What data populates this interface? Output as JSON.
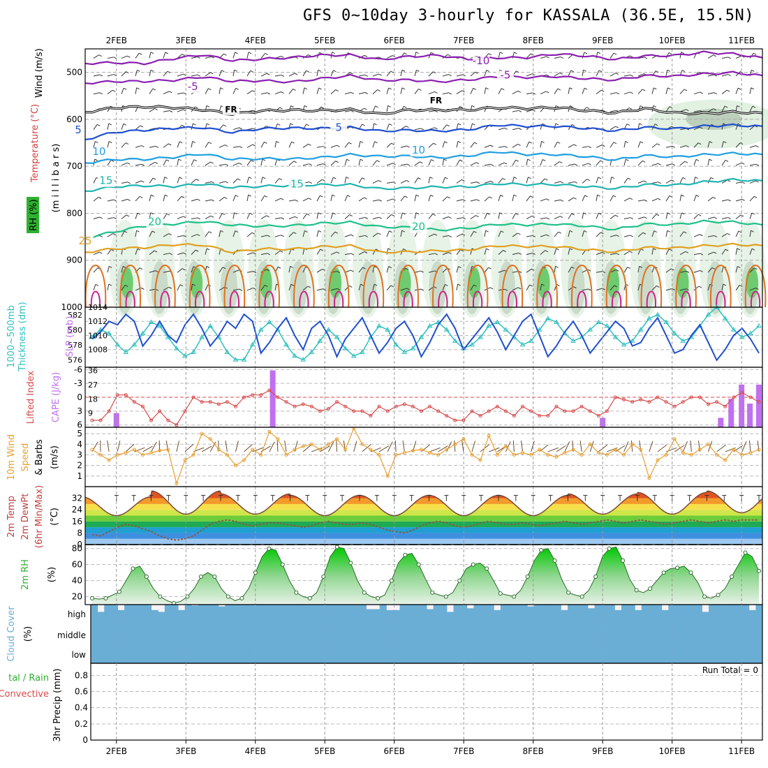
{
  "title": "GFS 0~10day 3-hourly for KASSALA (36.5E, 15.5N)",
  "colors": {
    "purple": "#8a1fb0",
    "black": "#000000",
    "blue": "#1f4fd0",
    "lightblue": "#1f9fe0",
    "teal": "#1fb4b0",
    "green": "#1fc08a",
    "orange": "#e0a020",
    "darkorange": "#e07020",
    "magenta": "#d01f8a",
    "cyan": "#2fbfbf",
    "red": "#d84a4a",
    "cape": "#c070f0",
    "wind10": "#e8a030",
    "cloud": "#6aaed6",
    "rh": "#2fb030"
  },
  "chart_data": [
    {
      "type": "line",
      "name": "upper-air-section",
      "x_labels": [
        "2FEB",
        "3FEB",
        "4FEB",
        "5FEB",
        "6FEB",
        "7FEB",
        "8FEB",
        "9FEB",
        "10FEB",
        "11FEB"
      ],
      "ylabel_parts": [
        "Wind (m/s)",
        "Temperature (°C)",
        "RH (%)",
        "(m i l l i b a r s)"
      ],
      "y_ticks": [
        500,
        600,
        700,
        800,
        900,
        1000
      ],
      "ylim": [
        450,
        1000
      ],
      "contour_labels": [
        {
          "text": "-10",
          "x_day": 7.25,
          "p": 483,
          "color": "purple"
        },
        {
          "text": "-5",
          "x_day": 7.6,
          "p": 513,
          "color": "purple"
        },
        {
          "text": "-5",
          "x_day": 3.1,
          "p": 538,
          "color": "purple"
        },
        {
          "text": "FR",
          "x_day": 3.65,
          "p": 585,
          "color": "black"
        },
        {
          "text": "FR",
          "x_day": 6.6,
          "p": 566,
          "color": "black"
        },
        {
          "text": "5",
          "x_day": 1.45,
          "p": 630,
          "color": "blue"
        },
        {
          "text": "5",
          "x_day": 5.2,
          "p": 625,
          "color": "blue"
        },
        {
          "text": "10",
          "x_day": 1.75,
          "p": 676,
          "color": "lightblue"
        },
        {
          "text": "10",
          "x_day": 6.35,
          "p": 673,
          "color": "lightblue"
        },
        {
          "text": "15",
          "x_day": 1.85,
          "p": 738,
          "color": "teal"
        },
        {
          "text": "15",
          "x_day": 4.6,
          "p": 745,
          "color": "teal"
        },
        {
          "text": "20",
          "x_day": 2.55,
          "p": 825,
          "color": "green"
        },
        {
          "text": "20",
          "x_day": 6.35,
          "p": 836,
          "color": "green"
        },
        {
          "text": "25",
          "x_day": 1.55,
          "p": 866,
          "color": "orange"
        }
      ],
      "isotherms": [
        {
          "color": "purple",
          "values": [
            478,
            482,
            480,
            470,
            465,
            472,
            474,
            468,
            462,
            466,
            470,
            468,
            464,
            470,
            472,
            466,
            462,
            466,
            470,
            468,
            462,
            458,
            462,
            466
          ]
        },
        {
          "color": "purple",
          "values": [
            520,
            522,
            518,
            516,
            512,
            516,
            520,
            520,
            512,
            510,
            514,
            518,
            520,
            514,
            512,
            508,
            510,
            514,
            514,
            510,
            506,
            504,
            502,
            504
          ]
        },
        {
          "color": "black",
          "values": [
            582,
            578,
            572,
            574,
            582,
            586,
            584,
            580,
            580,
            582,
            586,
            582,
            580,
            578,
            578,
            574,
            576,
            582,
            584,
            580,
            584,
            588,
            586,
            584
          ]
        },
        {
          "color": "blue",
          "values": [
            640,
            630,
            622,
            618,
            620,
            625,
            622,
            618,
            618,
            620,
            622,
            625,
            625,
            620,
            615,
            612,
            616,
            620,
            622,
            620,
            618,
            615,
            614,
            612
          ]
        },
        {
          "color": "lightblue",
          "values": [
            690,
            688,
            684,
            680,
            676,
            682,
            686,
            684,
            680,
            678,
            676,
            680,
            682,
            676,
            672,
            672,
            676,
            680,
            684,
            680,
            678,
            676,
            674,
            672
          ]
        },
        {
          "color": "teal",
          "values": [
            750,
            746,
            740,
            742,
            740,
            742,
            745,
            740,
            738,
            742,
            745,
            748,
            744,
            742,
            740,
            736,
            740,
            744,
            745,
            742,
            738,
            734,
            730,
            728
          ]
        },
        {
          "color": "green",
          "values": [
            850,
            842,
            826,
            822,
            820,
            822,
            830,
            826,
            820,
            822,
            826,
            832,
            836,
            830,
            826,
            822,
            824,
            828,
            832,
            826,
            822,
            818,
            820,
            822
          ]
        },
        {
          "color": "orange",
          "values": [
            880,
            878,
            872,
            866,
            870,
            880,
            878,
            876,
            870,
            872,
            880,
            884,
            880,
            876,
            872,
            868,
            872,
            878,
            880,
            876,
            872,
            870,
            868,
            866
          ]
        }
      ]
    },
    {
      "type": "line",
      "name": "slp-thickness",
      "ylabel_left": "1000~500mb Thickness (dm)",
      "ylabel_right": "SLP (mb)",
      "left_ticks": [
        576,
        578,
        580,
        582
      ],
      "right_ticks": [
        1008,
        1010,
        1012,
        1014
      ],
      "left_lim": [
        575,
        583
      ],
      "right_lim": [
        1005.5,
        1014
      ],
      "slp": [
        1009.5,
        1010.5,
        1012,
        1011.5,
        1013,
        1012,
        1008.5,
        1010,
        1012,
        1010,
        1009,
        1011.5,
        1013,
        1011,
        1008.5,
        1010,
        1012,
        1011,
        1013,
        1012,
        1007.5,
        1009,
        1011,
        1012.5,
        1010,
        1008,
        1011,
        1012,
        1010,
        1007,
        1009.5,
        1011,
        1012.5,
        1010,
        1007.5,
        1009,
        1011,
        1012,
        1010,
        1007,
        1009,
        1011.5,
        1013,
        1011,
        1008,
        1009.5,
        1011,
        1012.5,
        1010.5,
        1008,
        1010,
        1012,
        1013,
        1010,
        1007,
        1008.5,
        1010.5,
        1012,
        1010,
        1007.5,
        1009,
        1010.5,
        1012,
        1011,
        1008.5,
        1009,
        1011,
        1012.5,
        1010,
        1007.5,
        1008,
        1010,
        1011.5,
        1009,
        1006.5,
        1008,
        1010,
        1011,
        1009.5,
        1007.5
      ],
      "thickness": [
        579,
        580,
        579.5,
        578,
        577,
        578,
        579.5,
        581,
        580.5,
        579,
        577.5,
        576.5,
        577,
        579,
        580.5,
        579,
        577,
        576,
        576,
        578,
        580,
        581,
        580,
        578,
        576.5,
        576,
        577,
        578.5,
        580,
        579,
        577.5,
        576.5,
        577,
        579,
        580.5,
        580,
        578,
        577,
        577.5,
        579,
        580.5,
        581,
        580,
        578.5,
        577.5,
        578,
        579,
        580.5,
        581,
        580,
        579,
        578,
        578.5,
        580,
        581.5,
        581,
        579.5,
        578.5,
        579,
        580,
        581,
        580.5,
        579,
        578,
        578.5,
        580,
        581.5,
        582,
        581,
        579.5,
        578.5,
        579,
        580.5,
        582,
        583,
        581.5,
        580,
        579,
        579.5,
        580.5
      ]
    },
    {
      "type": "bar",
      "name": "lifted-index-cape",
      "ylabel_left": "Lifted Index",
      "ylabel_right": "CAPE (J/kg)",
      "left_ticks": [
        "-6",
        "-3",
        "0",
        "3",
        "6"
      ],
      "right_ticks": [
        "9",
        "18",
        "27",
        "36"
      ],
      "lifted_index": [
        5,
        5,
        3,
        -0.5,
        -0.5,
        1,
        2,
        5,
        3,
        5,
        6,
        3,
        0,
        1,
        1,
        1.5,
        1,
        2,
        0,
        -0.5,
        -0.5,
        -1.5,
        0,
        1,
        2,
        1.5,
        2,
        3,
        2.5,
        1,
        2,
        3,
        3,
        4,
        2,
        3,
        2,
        1.5,
        2,
        3,
        2,
        3,
        4,
        5,
        5,
        3,
        4,
        3,
        2,
        3,
        4,
        2,
        3,
        4,
        4,
        2,
        3,
        3,
        2,
        3,
        4,
        3,
        0,
        0.5,
        1,
        0.5,
        1,
        0,
        1,
        2,
        1,
        0,
        0,
        1.5,
        1,
        2,
        0,
        -1,
        0,
        1
      ],
      "cape": [
        {
          "x_day": 2.0,
          "v": 9
        },
        {
          "x_day": 4.25,
          "v": 36
        },
        {
          "x_day": 9.0,
          "v": 6
        },
        {
          "x_day": 10.7,
          "v": 6
        },
        {
          "x_day": 10.85,
          "v": 18
        },
        {
          "x_day": 11.0,
          "v": 27
        },
        {
          "x_day": 11.12,
          "v": 15
        },
        {
          "x_day": 11.25,
          "v": 27
        }
      ]
    },
    {
      "type": "line",
      "name": "wind10m",
      "ylabel": "10m Wind Speed & Barbs (m/s)",
      "y_ticks": [
        "1",
        "2",
        "3",
        "4",
        "5"
      ],
      "ylim": [
        0,
        5.6
      ],
      "speed": [
        3.5,
        3.0,
        2.5,
        3.0,
        3.2,
        3.5,
        3.0,
        3.2,
        3.4,
        3.5,
        0.3,
        2.5,
        3.0,
        5.0,
        4.5,
        3.5,
        3.0,
        2.0,
        2.5,
        3.5,
        3.0,
        5.2,
        4.5,
        3.0,
        3.5,
        3.8,
        4.0,
        3.5,
        4.0,
        4.5,
        3.5,
        5.5,
        4.0,
        3.5,
        3.0,
        1.0,
        3.0,
        3.2,
        3.4,
        3.5,
        3.2,
        3.0,
        3.5,
        4.0,
        4.5,
        3.0,
        2.5,
        4.8,
        3.0,
        3.8,
        3.0,
        3.2,
        3.0,
        3.5,
        3.0,
        2.8,
        3.2,
        3.5,
        3.0,
        4.0,
        3.2,
        3.0,
        3.5,
        3.0,
        4.0,
        3.5,
        0.8,
        2.5,
        3.0,
        4.5,
        3.2,
        3.0,
        3.5,
        4.0,
        3.0,
        2.5,
        3.5,
        3.0,
        3.2,
        3.5
      ]
    },
    {
      "type": "area",
      "name": "temp-dewpoint",
      "ylabel_lines": [
        "2m Temp",
        "2m DewPt",
        "(6hr Min/Max)"
      ],
      "yunit": "(°C)",
      "y_ticks": [
        "0",
        "8",
        "16",
        "24",
        "32"
      ],
      "ylim": [
        0,
        40
      ],
      "temp_max": [
        33,
        37,
        35,
        34,
        34,
        34,
        34,
        35,
        36,
        37
      ],
      "temp_min": [
        20,
        21,
        21,
        20,
        20,
        20,
        20,
        21,
        21,
        22
      ],
      "dewpoint": [
        7,
        6,
        9,
        12,
        14,
        13,
        11,
        9,
        6,
        4,
        3,
        4,
        6,
        10,
        14,
        16,
        17,
        16,
        14,
        13,
        14,
        15,
        15,
        14,
        13,
        12,
        13,
        15,
        16,
        15,
        14,
        14,
        15,
        14,
        12,
        10,
        9,
        8,
        10,
        13,
        15,
        16,
        15,
        13,
        12,
        13,
        15,
        16,
        15,
        14,
        14,
        15,
        14,
        13,
        14,
        15,
        16,
        15,
        14,
        15,
        16,
        17,
        16,
        15,
        16,
        17,
        16,
        15,
        14,
        15,
        16,
        17,
        16,
        15,
        16,
        17,
        16,
        17,
        17,
        17
      ]
    },
    {
      "type": "area",
      "name": "rh2m",
      "ylabel": "2m RH",
      "yunit": "(%)",
      "y_ticks": [
        "20",
        "40",
        "60",
        "80"
      ],
      "ylim": [
        10,
        85
      ],
      "rh": [
        18,
        17,
        18,
        22,
        26,
        40,
        55,
        58,
        45,
        30,
        20,
        15,
        12,
        14,
        20,
        30,
        45,
        50,
        45,
        30,
        20,
        15,
        18,
        30,
        50,
        70,
        80,
        78,
        60,
        40,
        25,
        20,
        18,
        25,
        45,
        70,
        82,
        80,
        62,
        40,
        25,
        20,
        18,
        22,
        40,
        62,
        72,
        74,
        60,
        42,
        25,
        22,
        20,
        25,
        40,
        55,
        60,
        62,
        55,
        40,
        24,
        22,
        20,
        28,
        45,
        65,
        78,
        80,
        65,
        42,
        25,
        22,
        20,
        28,
        45,
        70,
        80,
        82,
        65,
        42,
        28,
        25,
        30,
        40,
        50,
        55,
        56,
        58,
        50,
        38,
        20,
        18,
        22,
        30,
        45,
        60,
        75,
        70,
        52
      ]
    },
    {
      "type": "area",
      "name": "cloud-cover",
      "ylabel": "Cloud Cover (%)",
      "layer_labels": [
        "high",
        "middle",
        "low"
      ],
      "high": [
        100,
        60,
        100,
        100,
        70,
        100,
        100,
        100,
        100,
        70,
        60,
        100,
        100,
        70,
        100,
        95,
        100,
        100,
        100,
        90,
        100,
        100,
        100,
        100,
        100,
        100,
        100,
        100,
        100,
        100,
        100,
        100,
        100,
        100,
        100,
        100,
        100,
        100,
        100,
        100,
        100,
        75,
        75,
        100,
        70,
        70,
        100,
        100,
        100,
        100,
        75,
        100,
        100,
        60,
        100,
        100,
        80,
        100,
        100,
        100,
        70,
        100,
        100,
        100,
        100,
        90,
        100,
        100,
        100,
        100,
        70,
        100,
        100,
        100,
        80,
        100,
        100,
        100,
        70,
        100,
        100,
        70,
        100,
        100,
        100,
        70,
        100,
        100,
        100,
        100,
        100,
        60,
        100,
        100,
        100,
        100,
        100,
        100,
        70,
        100
      ]
    },
    {
      "type": "bar",
      "name": "precip",
      "ylabel_lines": [
        "Total / Rain",
        "Convective",
        "3hr Precip (mm)"
      ],
      "run_total_label": "Run Total = 0",
      "y_ticks": [
        "0",
        "0.2",
        "0.4",
        "0.6",
        "0.8"
      ],
      "values": []
    }
  ]
}
